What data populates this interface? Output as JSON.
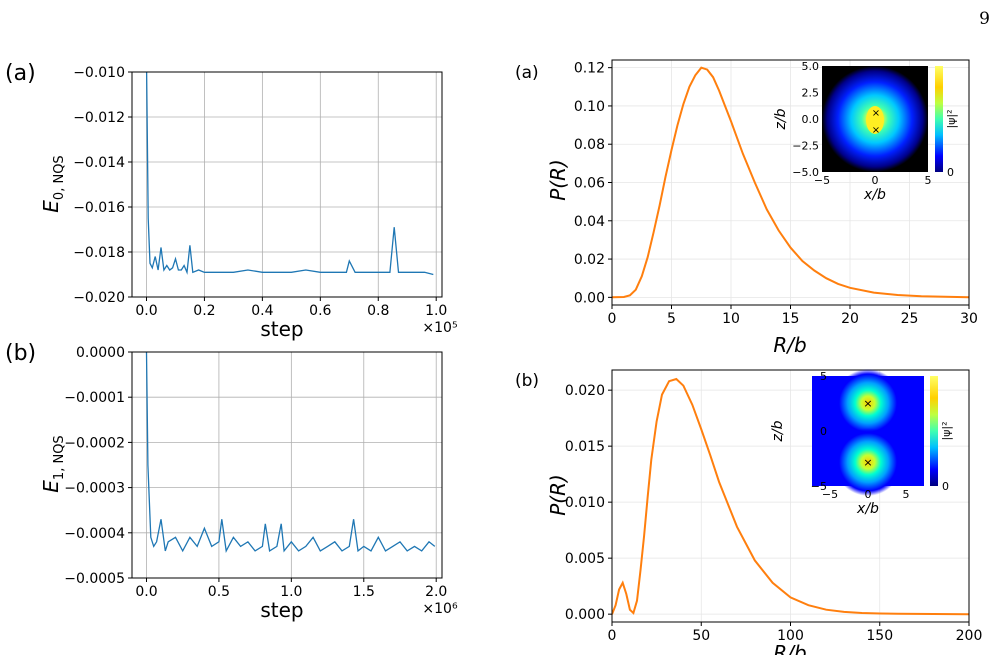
{
  "page_number": "9",
  "chart_data": [
    {
      "id": "left-a",
      "type": "line",
      "panel_label": "(a)",
      "xlabel": "step",
      "ylabel": "E",
      "ylabel_sub": "0, NQS",
      "x_multiplier": "×10⁵",
      "xlim": [
        -0.05,
        1.02
      ],
      "ylim": [
        -0.02,
        -0.01
      ],
      "xticks": [
        "0.0",
        "0.2",
        "0.4",
        "0.6",
        "0.8",
        "1.0"
      ],
      "yticks": [
        "−0.020",
        "−0.018",
        "−0.016",
        "−0.014",
        "−0.012",
        "−0.010"
      ],
      "grid": true,
      "color": "#1f77b4",
      "series": [
        {
          "x": [
            0,
            0.006,
            0.012,
            0.02,
            0.03,
            0.04,
            0.05,
            0.06,
            0.07,
            0.08,
            0.09,
            0.1,
            0.11,
            0.12,
            0.13,
            0.14,
            0.15,
            0.16,
            0.18,
            0.2,
            0.25,
            0.3,
            0.35,
            0.4,
            0.45,
            0.5,
            0.55,
            0.6,
            0.65,
            0.69,
            0.7,
            0.72,
            0.75,
            0.8,
            0.84,
            0.855,
            0.87,
            0.9,
            0.93,
            0.96,
            0.99
          ],
          "y": [
            -0.0095,
            -0.0165,
            -0.0185,
            -0.0187,
            -0.0182,
            -0.0188,
            -0.0178,
            -0.0188,
            -0.0186,
            -0.0188,
            -0.0187,
            -0.0183,
            -0.0188,
            -0.0188,
            -0.0186,
            -0.0189,
            -0.0177,
            -0.0189,
            -0.0188,
            -0.0189,
            -0.0189,
            -0.0189,
            -0.0188,
            -0.0189,
            -0.0189,
            -0.0189,
            -0.0188,
            -0.0189,
            -0.0189,
            -0.0189,
            -0.0184,
            -0.0189,
            -0.0189,
            -0.0189,
            -0.0189,
            -0.0169,
            -0.0189,
            -0.0189,
            -0.0189,
            -0.0189,
            -0.019
          ]
        }
      ]
    },
    {
      "id": "left-b",
      "type": "line",
      "panel_label": "(b)",
      "xlabel": "step",
      "ylabel": "E",
      "ylabel_sub": "1, NQS",
      "x_multiplier": "×10⁶",
      "xlim": [
        -0.1,
        2.04
      ],
      "ylim": [
        -0.0005,
        0.0
      ],
      "xticks": [
        "0.0",
        "0.5",
        "1.0",
        "1.5",
        "2.0"
      ],
      "yticks": [
        "−0.0005",
        "−0.0004",
        "−0.0003",
        "−0.0002",
        "−0.0001",
        "0.0000"
      ],
      "grid": true,
      "color": "#1f77b4",
      "series": [
        {
          "x": [
            0,
            0.01,
            0.03,
            0.05,
            0.07,
            0.1,
            0.13,
            0.15,
            0.2,
            0.25,
            0.3,
            0.35,
            0.4,
            0.45,
            0.5,
            0.52,
            0.55,
            0.6,
            0.65,
            0.7,
            0.75,
            0.8,
            0.82,
            0.85,
            0.9,
            0.93,
            0.95,
            1.0,
            1.05,
            1.1,
            1.15,
            1.2,
            1.25,
            1.3,
            1.35,
            1.4,
            1.43,
            1.46,
            1.5,
            1.55,
            1.6,
            1.65,
            1.7,
            1.75,
            1.8,
            1.85,
            1.9,
            1.95,
            1.99
          ],
          "y": [
            0.0,
            -0.00025,
            -0.00041,
            -0.00043,
            -0.00042,
            -0.00037,
            -0.00044,
            -0.00042,
            -0.00041,
            -0.00044,
            -0.00041,
            -0.00043,
            -0.00039,
            -0.00043,
            -0.00042,
            -0.00037,
            -0.00044,
            -0.00041,
            -0.00043,
            -0.00042,
            -0.00044,
            -0.00043,
            -0.00038,
            -0.00044,
            -0.00043,
            -0.00038,
            -0.00044,
            -0.00042,
            -0.00044,
            -0.00043,
            -0.00041,
            -0.00044,
            -0.00043,
            -0.00042,
            -0.00044,
            -0.00043,
            -0.00037,
            -0.00044,
            -0.00043,
            -0.00044,
            -0.00041,
            -0.00044,
            -0.00043,
            -0.00042,
            -0.00044,
            -0.00043,
            -0.00044,
            -0.00042,
            -0.00043
          ]
        }
      ]
    },
    {
      "id": "right-a",
      "type": "line",
      "panel_label": "(a)",
      "xlabel": "R/b",
      "ylabel": "P(R)",
      "xlim": [
        0,
        30
      ],
      "ylim": [
        -0.004,
        0.124
      ],
      "xticks": [
        0,
        5,
        10,
        15,
        20,
        25,
        30
      ],
      "yticks": [
        "0.00",
        "0.02",
        "0.04",
        "0.06",
        "0.08",
        "0.10",
        "0.12"
      ],
      "ytick_values": [
        0,
        0.02,
        0.04,
        0.06,
        0.08,
        0.1,
        0.12
      ],
      "grid": true,
      "color": "#ff7f0e",
      "series": [
        {
          "x": [
            0,
            1,
            1.5,
            2,
            2.5,
            3,
            3.5,
            4,
            4.5,
            5,
            5.5,
            6,
            6.5,
            7,
            7.5,
            8,
            8.5,
            9,
            9.5,
            10,
            11,
            12,
            13,
            14,
            15,
            16,
            17,
            18,
            19,
            20,
            22,
            24,
            26,
            28,
            30
          ],
          "y": [
            0,
            0.0002,
            0.001,
            0.004,
            0.011,
            0.021,
            0.034,
            0.048,
            0.063,
            0.077,
            0.09,
            0.101,
            0.11,
            0.116,
            0.12,
            0.119,
            0.115,
            0.108,
            0.1,
            0.092,
            0.075,
            0.06,
            0.046,
            0.035,
            0.026,
            0.019,
            0.014,
            0.01,
            0.007,
            0.005,
            0.0025,
            0.0012,
            0.0006,
            0.0003,
            0.0001
          ]
        }
      ],
      "inset": {
        "xlabel": "x/b",
        "ylabel": "z/b",
        "colorbar_label": "|ψ|²",
        "xticks": [
          "−5",
          "0",
          "5"
        ],
        "yticks": [
          "−5.0",
          "−2.5",
          "0.0",
          "2.5",
          "5.0"
        ],
        "colorbar_ticks": [
          "0",
          "1"
        ]
      }
    },
    {
      "id": "right-b",
      "type": "line",
      "panel_label": "(b)",
      "xlabel": "R/b",
      "ylabel": "P(R)",
      "xlim": [
        0,
        200
      ],
      "ylim": [
        -0.0007,
        0.0218
      ],
      "xticks": [
        0,
        50,
        100,
        150,
        200
      ],
      "yticks": [
        "0.000",
        "0.005",
        "0.010",
        "0.015",
        "0.020"
      ],
      "ytick_values": [
        0,
        0.005,
        0.01,
        0.015,
        0.02
      ],
      "grid": true,
      "color": "#ff7f0e",
      "series": [
        {
          "x": [
            0,
            2,
            4,
            6,
            8,
            10,
            12,
            14,
            16,
            18,
            20,
            22,
            25,
            28,
            32,
            36,
            40,
            45,
            50,
            55,
            60,
            70,
            80,
            90,
            100,
            110,
            120,
            130,
            140,
            150,
            160,
            180,
            200
          ],
          "y": [
            0,
            0.0008,
            0.0022,
            0.0028,
            0.0018,
            0.0004,
            0.0001,
            0.0012,
            0.004,
            0.007,
            0.0105,
            0.0138,
            0.0172,
            0.0196,
            0.0208,
            0.021,
            0.0204,
            0.0187,
            0.0165,
            0.0142,
            0.0118,
            0.0078,
            0.0048,
            0.0028,
            0.0015,
            0.0008,
            0.0004,
            0.0002,
            0.0001,
            6e-05,
            3e-05,
            1e-05,
            0.0
          ]
        }
      ],
      "inset": {
        "xlabel": "x/b",
        "ylabel": "z/b",
        "colorbar_label": "|ψ|²",
        "xticks": [
          "−5",
          "0",
          "5"
        ],
        "yticks": [
          "−5",
          "0",
          "5"
        ],
        "colorbar_ticks": [
          "0",
          "1"
        ]
      }
    }
  ]
}
